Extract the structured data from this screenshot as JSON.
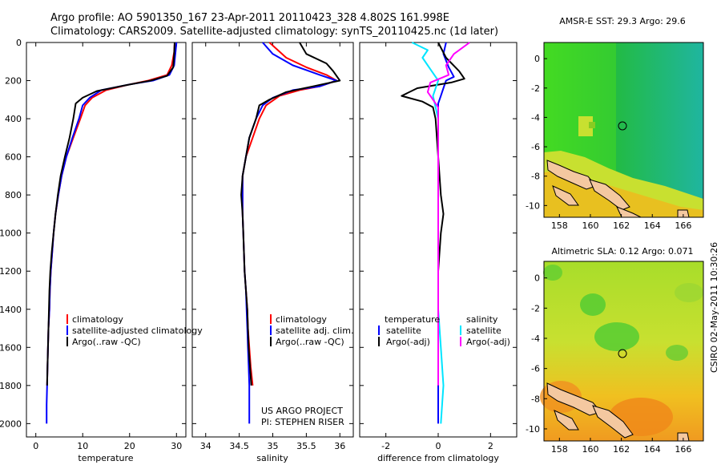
{
  "header": {
    "line1": "Argo profile: AO 5901350_167 23-Apr-2011 20110423_328 4.802S 161.998E",
    "line2": "Climatology: CARS2009. Satellite-adjusted climatology: synTS_20110425.nc (1d later)"
  },
  "colors": {
    "climatology": "#ff0000",
    "satellite": "#0000ff",
    "argo": "#000000",
    "sal_satellite": "#00e5ff",
    "sal_argo": "#ff00ff"
  },
  "panels": {
    "temperature": {
      "xlabel": "temperature",
      "xticks": [
        "0",
        "10",
        "20",
        "30"
      ],
      "legend": [
        "climatology",
        "satellite-adjusted climatology",
        "Argo(..raw -QC)"
      ]
    },
    "salinity": {
      "xlabel": "salinity",
      "xticks": [
        "34",
        "34.5",
        "35",
        "35.5",
        "36"
      ],
      "legend": [
        "climatology",
        "satellite adj. clim.",
        "Argo(..raw -QC)"
      ],
      "note1": "US ARGO PROJECT",
      "note2": "PI: STEPHEN RISER"
    },
    "difference": {
      "xlabel": "difference from climatology",
      "xticks": [
        "-2",
        "0",
        "2"
      ],
      "legend_temp_head": "temperature",
      "legend_sal_head": "salinity",
      "legend_temp": [
        "satellite",
        "Argo(-adj)"
      ],
      "legend_sal": [
        "satellite",
        "Argo(-adj)"
      ]
    }
  },
  "depth_ticks": [
    "0",
    "200",
    "400",
    "600",
    "800",
    "1000",
    "1200",
    "1400",
    "1600",
    "1800",
    "2000"
  ],
  "maps": {
    "sst": {
      "title": "AMSR-E SST: 29.3 Argo: 29.6",
      "xticks": [
        "158",
        "160",
        "162",
        "164",
        "166"
      ],
      "yticks": [
        "0",
        "-2",
        "-4",
        "-6",
        "-8",
        "-10"
      ]
    },
    "sla": {
      "title": "Altimetric SLA: 0.12 Argo: 0.071",
      "xticks": [
        "158",
        "160",
        "162",
        "164",
        "166"
      ],
      "yticks": [
        "0",
        "-2",
        "-4",
        "-6",
        "-8",
        "-10"
      ]
    }
  },
  "side_label": "CSIRO 02-May-2011 10:30:26",
  "chart_data": [
    {
      "type": "line",
      "xlabel": "temperature",
      "ylim": [
        2070,
        0
      ],
      "xlim": [
        -2,
        32
      ],
      "series": [
        {
          "name": "climatology",
          "points": [
            [
              29.6,
              0
            ],
            [
              29.5,
              50
            ],
            [
              29.0,
              120
            ],
            [
              28.0,
              170
            ],
            [
              24.0,
              200
            ],
            [
              20.0,
              220
            ],
            [
              15.0,
              250
            ],
            [
              12.0,
              290
            ],
            [
              10.5,
              330
            ],
            [
              9.5,
              400
            ],
            [
              8.0,
              500
            ],
            [
              6.5,
              600
            ],
            [
              5.5,
              700
            ],
            [
              4.8,
              800
            ],
            [
              4.2,
              900
            ],
            [
              3.8,
              1000
            ],
            [
              3.5,
              1100
            ],
            [
              3.2,
              1200
            ],
            [
              3.0,
              1300
            ],
            [
              2.9,
              1400
            ],
            [
              2.7,
              1500
            ],
            [
              2.6,
              1600
            ],
            [
              2.5,
              1700
            ],
            [
              2.4,
              1800
            ]
          ]
        },
        {
          "name": "satellite-adjusted climatology",
          "points": [
            [
              30.0,
              0
            ],
            [
              29.8,
              50
            ],
            [
              29.5,
              120
            ],
            [
              28.5,
              170
            ],
            [
              25.0,
              200
            ],
            [
              20.0,
              220
            ],
            [
              14.0,
              250
            ],
            [
              11.5,
              290
            ],
            [
              10.0,
              330
            ],
            [
              9.2,
              400
            ],
            [
              7.8,
              500
            ],
            [
              6.5,
              600
            ],
            [
              5.5,
              700
            ],
            [
              4.8,
              800
            ],
            [
              4.2,
              900
            ],
            [
              3.8,
              1000
            ],
            [
              3.5,
              1100
            ],
            [
              3.2,
              1200
            ],
            [
              3.0,
              1300
            ],
            [
              2.9,
              1400
            ],
            [
              2.7,
              1500
            ],
            [
              2.6,
              1600
            ],
            [
              2.5,
              1700
            ],
            [
              2.4,
              1800
            ],
            [
              2.3,
              1900
            ],
            [
              2.3,
              2000
            ]
          ]
        },
        {
          "name": "Argo(..raw -QC)",
          "points": [
            [
              29.6,
              0
            ],
            [
              29.5,
              60
            ],
            [
              29.3,
              130
            ],
            [
              28.0,
              175
            ],
            [
              24.5,
              200
            ],
            [
              19.0,
              225
            ],
            [
              13.0,
              255
            ],
            [
              10.0,
              290
            ],
            [
              8.5,
              320
            ],
            [
              8.0,
              400
            ],
            [
              7.2,
              500
            ],
            [
              6.2,
              600
            ],
            [
              5.3,
              700
            ],
            [
              4.7,
              800
            ],
            [
              4.2,
              900
            ],
            [
              3.8,
              1000
            ],
            [
              3.4,
              1100
            ],
            [
              3.1,
              1200
            ],
            [
              2.9,
              1300
            ],
            [
              2.8,
              1400
            ],
            [
              2.7,
              1500
            ],
            [
              2.6,
              1600
            ],
            [
              2.5,
              1700
            ],
            [
              2.4,
              1800
            ]
          ]
        }
      ]
    },
    {
      "type": "line",
      "xlabel": "salinity",
      "ylim": [
        2070,
        0
      ],
      "xlim": [
        33.8,
        36.2
      ],
      "series": [
        {
          "name": "climatology",
          "points": [
            [
              34.95,
              0
            ],
            [
              35.2,
              80
            ],
            [
              35.5,
              130
            ],
            [
              35.8,
              170
            ],
            [
              35.95,
              200
            ],
            [
              35.7,
              230
            ],
            [
              35.4,
              250
            ],
            [
              35.1,
              280
            ],
            [
              34.9,
              330
            ],
            [
              34.8,
              400
            ],
            [
              34.7,
              500
            ],
            [
              34.6,
              600
            ],
            [
              34.55,
              700
            ],
            [
              34.55,
              800
            ],
            [
              34.55,
              900
            ],
            [
              34.56,
              1000
            ],
            [
              34.57,
              1100
            ],
            [
              34.58,
              1200
            ],
            [
              34.6,
              1300
            ],
            [
              34.62,
              1400
            ],
            [
              34.63,
              1500
            ],
            [
              34.65,
              1600
            ],
            [
              34.67,
              1700
            ],
            [
              34.7,
              1800
            ]
          ]
        },
        {
          "name": "satellite adj. clim.",
          "points": [
            [
              34.85,
              0
            ],
            [
              35.0,
              60
            ],
            [
              35.3,
              120
            ],
            [
              35.7,
              170
            ],
            [
              35.95,
              200
            ],
            [
              35.7,
              230
            ],
            [
              35.3,
              250
            ],
            [
              35.0,
              290
            ],
            [
              34.85,
              330
            ],
            [
              34.75,
              400
            ],
            [
              34.65,
              500
            ],
            [
              34.6,
              600
            ],
            [
              34.55,
              700
            ],
            [
              34.55,
              800
            ],
            [
              34.55,
              900
            ],
            [
              34.56,
              1000
            ],
            [
              34.57,
              1100
            ],
            [
              34.58,
              1200
            ],
            [
              34.6,
              1300
            ],
            [
              34.61,
              1400
            ],
            [
              34.62,
              1500
            ],
            [
              34.63,
              1600
            ],
            [
              34.64,
              1700
            ],
            [
              34.65,
              1800
            ],
            [
              34.65,
              1900
            ],
            [
              34.65,
              2000
            ]
          ]
        },
        {
          "name": "Argo(..raw -QC)",
          "points": [
            [
              35.4,
              0
            ],
            [
              35.5,
              60
            ],
            [
              35.8,
              110
            ],
            [
              35.9,
              150
            ],
            [
              36.0,
              200
            ],
            [
              35.6,
              230
            ],
            [
              35.2,
              260
            ],
            [
              34.95,
              300
            ],
            [
              34.8,
              330
            ],
            [
              34.75,
              400
            ],
            [
              34.65,
              500
            ],
            [
              34.6,
              600
            ],
            [
              34.55,
              700
            ],
            [
              34.53,
              800
            ],
            [
              34.55,
              900
            ],
            [
              34.56,
              1000
            ],
            [
              34.57,
              1100
            ],
            [
              34.58,
              1200
            ],
            [
              34.6,
              1300
            ],
            [
              34.62,
              1400
            ],
            [
              34.63,
              1500
            ],
            [
              34.64,
              1600
            ],
            [
              34.66,
              1700
            ],
            [
              34.68,
              1800
            ]
          ]
        }
      ]
    },
    {
      "type": "line",
      "xlabel": "difference from climatology",
      "ylim": [
        2070,
        0
      ],
      "xlim": [
        -3,
        3
      ],
      "series": [
        {
          "name": "temperature satellite",
          "points": [
            [
              0.3,
              0
            ],
            [
              0.2,
              60
            ],
            [
              0.4,
              130
            ],
            [
              0.6,
              180
            ],
            [
              0.3,
              200
            ],
            [
              0.2,
              240
            ],
            [
              0.1,
              280
            ],
            [
              0.0,
              320
            ],
            [
              0.0,
              400
            ],
            [
              0.0,
              600
            ],
            [
              0.0,
              800
            ],
            [
              0.0,
              1000
            ],
            [
              0.0,
              1200
            ],
            [
              0.0,
              1400
            ],
            [
              0.0,
              1600
            ],
            [
              0.0,
              1800
            ],
            [
              0.0,
              2000
            ]
          ]
        },
        {
          "name": "temperature Argo(-adj)",
          "points": [
            [
              0.0,
              0
            ],
            [
              0.3,
              80
            ],
            [
              0.8,
              150
            ],
            [
              1.0,
              190
            ],
            [
              0.5,
              210
            ],
            [
              -0.8,
              240
            ],
            [
              -1.4,
              280
            ],
            [
              -0.6,
              310
            ],
            [
              -0.2,
              340
            ],
            [
              -0.1,
              400
            ],
            [
              0.0,
              600
            ],
            [
              0.1,
              800
            ],
            [
              0.2,
              900
            ],
            [
              0.1,
              1000
            ],
            [
              0.0,
              1200
            ],
            [
              0.0,
              1400
            ],
            [
              0.0,
              1600
            ],
            [
              0.0,
              1800
            ]
          ]
        },
        {
          "name": "salinity satellite",
          "points": [
            [
              -1.0,
              0
            ],
            [
              -0.4,
              40
            ],
            [
              -0.6,
              80
            ],
            [
              -0.3,
              140
            ],
            [
              0.0,
              200
            ],
            [
              -0.2,
              280
            ],
            [
              0.0,
              400
            ],
            [
              0.0,
              600
            ],
            [
              0.0,
              800
            ],
            [
              0.0,
              1000
            ],
            [
              0.0,
              1200
            ],
            [
              0.0,
              1400
            ],
            [
              0.1,
              1600
            ],
            [
              0.2,
              1800
            ],
            [
              0.1,
              2000
            ]
          ]
        },
        {
          "name": "salinity Argo(-adj)",
          "points": [
            [
              1.2,
              0
            ],
            [
              0.6,
              60
            ],
            [
              0.3,
              120
            ],
            [
              0.4,
              170
            ],
            [
              -0.3,
              210
            ],
            [
              -0.4,
              260
            ],
            [
              -0.2,
              300
            ],
            [
              0.0,
              340
            ],
            [
              0.0,
              400
            ],
            [
              0.0,
              600
            ],
            [
              0.0,
              800
            ],
            [
              0.0,
              1000
            ],
            [
              0.0,
              1200
            ],
            [
              0.0,
              1400
            ],
            [
              0.0,
              1600
            ],
            [
              0.0,
              1800
            ]
          ]
        }
      ]
    }
  ]
}
